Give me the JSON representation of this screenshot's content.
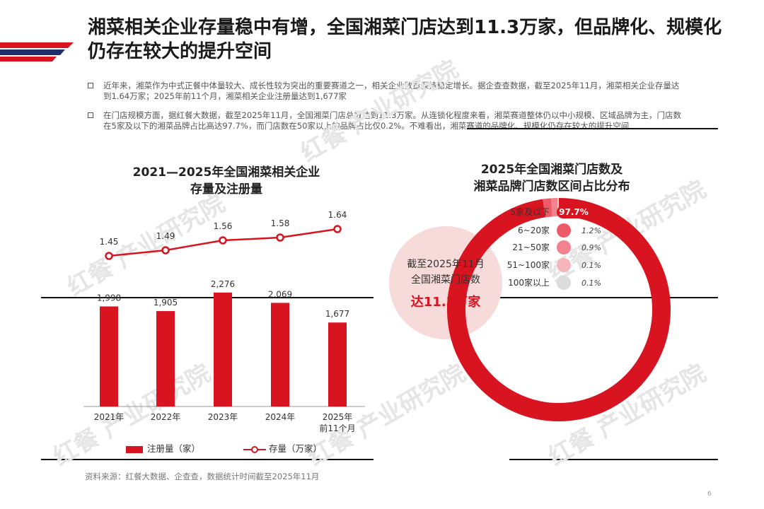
{
  "title": "湘菜相关企业存量稳中有增，全国湘菜门店达到11.3万家，但品牌化、规模化仍存在较大的提升空间",
  "bullets": [
    "近年来，湘菜作为中式正餐中体量较大、成长性较为突出的重要赛道之一，相关企业数量保持稳定增长。据企查查数据，截至2025年11月，湘菜相关企业存量达到1.64万家；2025年前11个月，湘菜相关企业注册量达到1,677家",
    "在门店规模方面，据红餐大数据，截至2025年11月，全国湘菜门店总数达到11.3万家。从连锁化程度来看，湘菜赛道整体仍以中小规模、区域品牌为主，门店数在5家及以下的湘菜品牌占比高达97.7%，而门店数在50家以上的品牌占比仅0.2%。不难看出，湘菜赛道的品牌化、规模化仍存在较大的提升空间"
  ],
  "watermark": "红餐 产业研究院",
  "left_chart": {
    "title_line1": "2021—2025年全国湘菜相关企业",
    "title_line2": "存量及注册量",
    "legend_bar": "注册量（家）",
    "legend_line": "存量（万家）"
  },
  "right_chart": {
    "title_line1": "2025年全国湘菜门店数及",
    "title_line2": "湘菜品牌门店数区间占比分布",
    "center_line1": "截至2025年11月",
    "center_line2": "全国湘菜门店数",
    "center_line3": "达11.3万家"
  },
  "source": "资料来源：红餐大数据、企查查，数据统计时间截至2025年11月",
  "page_number": "6",
  "colors": {
    "accent": "#d7141f",
    "navy": "#1f2d6b",
    "pink": "#f7dada"
  },
  "chart_data": [
    {
      "type": "bar",
      "title": "2021—2025年全国湘菜相关企业存量及注册量",
      "categories": [
        "2021年",
        "2022年",
        "2023年",
        "2024年",
        "2025年前11个月"
      ],
      "category_labels": [
        [
          "2021年"
        ],
        [
          "2022年"
        ],
        [
          "2023年"
        ],
        [
          "2024年"
        ],
        [
          "2025年",
          "前11个月"
        ]
      ],
      "series": [
        {
          "name": "注册量（家）",
          "type": "bar",
          "values": [
            1998,
            1905,
            2276,
            2069,
            1677
          ],
          "labels": [
            "1,998",
            "1,905",
            "2,276",
            "2,069",
            "1,677"
          ]
        },
        {
          "name": "存量（万家）",
          "type": "line",
          "values": [
            1.45,
            1.49,
            1.56,
            1.58,
            1.64
          ],
          "labels": [
            "1.45",
            "1.49",
            "1.56",
            "1.58",
            "1.64"
          ]
        }
      ],
      "bar_ylim": [
        0,
        2400
      ],
      "line_ylim": [
        1.4,
        1.7
      ]
    },
    {
      "type": "pie",
      "title": "2025年全国湘菜门店数及湘菜品牌门店数区间占比分布",
      "categories": [
        "5家及以下",
        "6~20家",
        "21~50家",
        "51~100家",
        "100家以上"
      ],
      "values": [
        97.7,
        1.2,
        0.9,
        0.1,
        0.1
      ],
      "labels": [
        "97.7%",
        "1.2%",
        "0.9%",
        "0.1%",
        "0.1%"
      ],
      "dot_colors": [
        "#d7141f",
        "#ef5a68",
        "#f2828d",
        "#f6b4bb",
        "#dcdcdc"
      ]
    }
  ]
}
